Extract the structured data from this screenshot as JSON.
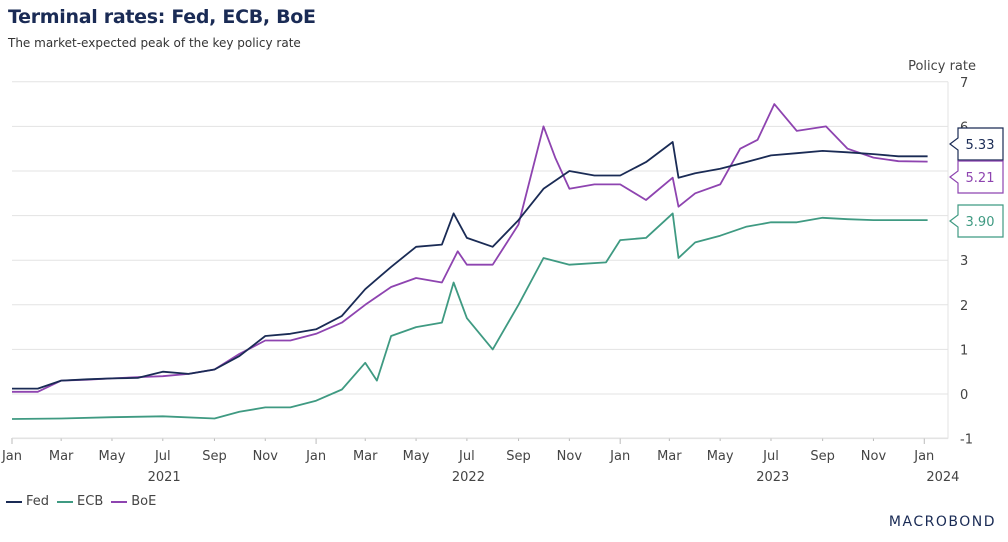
{
  "chart_data": {
    "type": "line",
    "title": "Terminal rates: Fed, ECB, BoE",
    "subtitle": "The market-expected peak of the key policy rate",
    "ylabel": "Policy rate",
    "ylim": [
      -1,
      7
    ],
    "yticks": [
      -1,
      0,
      1,
      2,
      3,
      4,
      5,
      6,
      7
    ],
    "xlim": [
      "2021-01-01",
      "2024-01-15"
    ],
    "xtick_labels": [
      "Jan",
      "Mar",
      "May",
      "Jul",
      "Sep",
      "Nov",
      "Jan",
      "Mar",
      "May",
      "Jul",
      "Sep",
      "Nov",
      "Jan",
      "Mar",
      "May",
      "Jul",
      "Sep",
      "Nov",
      "Jan"
    ],
    "year_labels": [
      "2021",
      "2022",
      "2023",
      "2024"
    ],
    "grid": true,
    "legend_position": "bottom-left",
    "series": [
      {
        "name": "Fed",
        "color": "#1a2b55",
        "last_label": "5.33",
        "points": [
          [
            "2021-01-01",
            0.12
          ],
          [
            "2021-02-01",
            0.12
          ],
          [
            "2021-03-01",
            0.3
          ],
          [
            "2021-04-01",
            0.33
          ],
          [
            "2021-05-01",
            0.35
          ],
          [
            "2021-06-01",
            0.36
          ],
          [
            "2021-07-01",
            0.5
          ],
          [
            "2021-08-01",
            0.45
          ],
          [
            "2021-09-01",
            0.55
          ],
          [
            "2021-10-01",
            0.85
          ],
          [
            "2021-11-01",
            1.3
          ],
          [
            "2021-12-01",
            1.35
          ],
          [
            "2022-01-01",
            1.45
          ],
          [
            "2022-02-01",
            1.75
          ],
          [
            "2022-03-01",
            2.35
          ],
          [
            "2022-04-01",
            2.85
          ],
          [
            "2022-05-01",
            3.3
          ],
          [
            "2022-06-01",
            3.35
          ],
          [
            "2022-06-15",
            4.05
          ],
          [
            "2022-07-01",
            3.5
          ],
          [
            "2022-08-01",
            3.3
          ],
          [
            "2022-09-01",
            3.9
          ],
          [
            "2022-10-01",
            4.6
          ],
          [
            "2022-11-01",
            5.0
          ],
          [
            "2022-12-01",
            4.9
          ],
          [
            "2023-01-01",
            4.9
          ],
          [
            "2023-02-01",
            5.2
          ],
          [
            "2023-03-05",
            5.65
          ],
          [
            "2023-03-12",
            4.85
          ],
          [
            "2023-04-01",
            4.95
          ],
          [
            "2023-05-01",
            5.05
          ],
          [
            "2023-06-01",
            5.2
          ],
          [
            "2023-07-01",
            5.35
          ],
          [
            "2023-08-01",
            5.4
          ],
          [
            "2023-09-01",
            5.45
          ],
          [
            "2023-10-01",
            5.42
          ],
          [
            "2023-11-01",
            5.38
          ],
          [
            "2023-12-01",
            5.33
          ],
          [
            "2024-01-05",
            5.33
          ]
        ]
      },
      {
        "name": "ECB",
        "color": "#3f9a82",
        "last_label": "3.90",
        "points": [
          [
            "2021-01-01",
            -0.56
          ],
          [
            "2021-03-01",
            -0.55
          ],
          [
            "2021-05-01",
            -0.52
          ],
          [
            "2021-07-01",
            -0.5
          ],
          [
            "2021-09-01",
            -0.55
          ],
          [
            "2021-10-01",
            -0.4
          ],
          [
            "2021-11-01",
            -0.3
          ],
          [
            "2021-12-01",
            -0.3
          ],
          [
            "2022-01-01",
            -0.15
          ],
          [
            "2022-02-01",
            0.1
          ],
          [
            "2022-03-01",
            0.7
          ],
          [
            "2022-03-15",
            0.3
          ],
          [
            "2022-04-01",
            1.3
          ],
          [
            "2022-05-01",
            1.5
          ],
          [
            "2022-06-01",
            1.6
          ],
          [
            "2022-06-15",
            2.5
          ],
          [
            "2022-07-01",
            1.7
          ],
          [
            "2022-08-01",
            1.0
          ],
          [
            "2022-09-01",
            2.0
          ],
          [
            "2022-10-01",
            3.05
          ],
          [
            "2022-11-01",
            2.9
          ],
          [
            "2022-12-15",
            2.95
          ],
          [
            "2023-01-01",
            3.45
          ],
          [
            "2023-02-01",
            3.5
          ],
          [
            "2023-03-05",
            4.05
          ],
          [
            "2023-03-12",
            3.05
          ],
          [
            "2023-04-01",
            3.4
          ],
          [
            "2023-05-01",
            3.55
          ],
          [
            "2023-06-01",
            3.75
          ],
          [
            "2023-07-01",
            3.85
          ],
          [
            "2023-08-01",
            3.85
          ],
          [
            "2023-09-01",
            3.95
          ],
          [
            "2023-10-01",
            3.92
          ],
          [
            "2023-11-01",
            3.9
          ],
          [
            "2023-12-01",
            3.9
          ],
          [
            "2024-01-05",
            3.9
          ]
        ]
      },
      {
        "name": "BoE",
        "color": "#8e44b0",
        "last_label": "5.21",
        "points": [
          [
            "2021-01-01",
            0.05
          ],
          [
            "2021-02-01",
            0.05
          ],
          [
            "2021-03-01",
            0.3
          ],
          [
            "2021-04-01",
            0.32
          ],
          [
            "2021-05-01",
            0.35
          ],
          [
            "2021-06-01",
            0.38
          ],
          [
            "2021-07-01",
            0.4
          ],
          [
            "2021-08-01",
            0.45
          ],
          [
            "2021-09-01",
            0.55
          ],
          [
            "2021-10-01",
            0.9
          ],
          [
            "2021-11-01",
            1.2
          ],
          [
            "2021-12-01",
            1.2
          ],
          [
            "2022-01-01",
            1.35
          ],
          [
            "2022-02-01",
            1.6
          ],
          [
            "2022-03-01",
            2.0
          ],
          [
            "2022-04-01",
            2.4
          ],
          [
            "2022-05-01",
            2.6
          ],
          [
            "2022-06-01",
            2.5
          ],
          [
            "2022-06-20",
            3.2
          ],
          [
            "2022-07-01",
            2.9
          ],
          [
            "2022-08-01",
            2.9
          ],
          [
            "2022-09-01",
            3.8
          ],
          [
            "2022-10-01",
            6.0
          ],
          [
            "2022-10-15",
            5.3
          ],
          [
            "2022-11-01",
            4.6
          ],
          [
            "2022-12-01",
            4.7
          ],
          [
            "2023-01-01",
            4.7
          ],
          [
            "2023-02-01",
            4.35
          ],
          [
            "2023-03-05",
            4.85
          ],
          [
            "2023-03-12",
            4.2
          ],
          [
            "2023-04-01",
            4.5
          ],
          [
            "2023-05-01",
            4.7
          ],
          [
            "2023-05-25",
            5.5
          ],
          [
            "2023-06-15",
            5.7
          ],
          [
            "2023-07-05",
            6.5
          ],
          [
            "2023-08-01",
            5.9
          ],
          [
            "2023-09-05",
            6.0
          ],
          [
            "2023-10-01",
            5.5
          ],
          [
            "2023-11-01",
            5.3
          ],
          [
            "2023-12-01",
            5.22
          ],
          [
            "2024-01-05",
            5.21
          ]
        ]
      }
    ]
  },
  "brand": "MACROBOND"
}
